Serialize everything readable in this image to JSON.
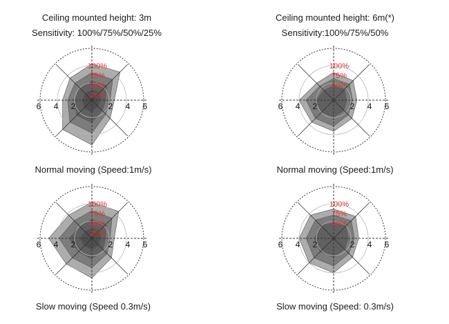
{
  "columns": [
    {
      "title_line1": "Ceiling mounted height: 3m",
      "title_line2": "Sensitivity: 100%/75%/50%/25%"
    },
    {
      "title_line1": "Ceiling mounted height: 6m(*)",
      "title_line2": "Sensitivity:100%/75%/50%"
    }
  ],
  "rows": [
    {
      "caption_col1": "Normal moving (Speed:1m/s)",
      "caption_col2": "Normal moving (Speed:1m/s)"
    },
    {
      "caption_col1": "Slow moving (Speed 0.3m/s)",
      "caption_col2": "Slow moving (Speed: 0.3m/s)"
    }
  ],
  "axis": {
    "left_ticks": [
      "6",
      "4",
      "2"
    ],
    "right_ticks": [
      "2",
      "4",
      "6"
    ],
    "max": 6
  },
  "colors": {
    "sensitivity_label": "#e03030",
    "axis": "#333333",
    "grid": "#444444",
    "zone_fill": "#3a3a3a"
  },
  "diagrams": [
    {
      "name": "3m-normal",
      "levels": [
        "100%",
        "75%",
        "50%",
        "25%"
      ],
      "zones": [
        [
          4.2,
          4.6,
          2.6,
          3.0,
          5.2,
          4.8,
          3.4,
          3.6
        ],
        [
          3.2,
          3.4,
          2.1,
          2.3,
          3.8,
          3.6,
          2.8,
          2.8
        ],
        [
          2.2,
          2.4,
          1.6,
          1.7,
          2.6,
          2.5,
          2.0,
          2.0
        ],
        [
          1.2,
          1.3,
          1.0,
          1.0,
          1.4,
          1.3,
          1.1,
          1.1
        ]
      ]
    },
    {
      "name": "6m-normal",
      "levels": [
        "100%",
        "75%",
        "50%"
      ],
      "zones": [
        [
          3.2,
          3.2,
          2.7,
          3.0,
          3.6,
          3.6,
          4.0,
          2.8
        ],
        [
          2.5,
          2.6,
          2.2,
          2.4,
          3.0,
          3.0,
          3.2,
          2.3
        ],
        [
          1.7,
          1.8,
          1.5,
          1.7,
          2.0,
          2.0,
          2.1,
          1.6
        ]
      ]
    },
    {
      "name": "3m-slow",
      "levels": [
        "100%",
        "75%",
        "50%",
        "25%"
      ],
      "zones": [
        [
          4.2,
          4.4,
          2.6,
          3.2,
          4.6,
          4.2,
          5.0,
          3.8
        ],
        [
          3.2,
          3.3,
          2.1,
          2.5,
          3.4,
          3.2,
          3.8,
          2.9
        ],
        [
          2.2,
          2.3,
          1.6,
          1.8,
          2.4,
          2.2,
          2.6,
          2.0
        ],
        [
          1.2,
          1.3,
          1.0,
          1.1,
          1.3,
          1.2,
          1.4,
          1.1
        ]
      ]
    },
    {
      "name": "6m-slow",
      "levels": [
        "100%",
        "75%",
        "50%"
      ],
      "zones": [
        [
          3.4,
          3.6,
          2.9,
          3.1,
          4.0,
          4.0,
          4.0,
          3.8
        ],
        [
          2.7,
          2.9,
          2.4,
          2.5,
          3.2,
          3.2,
          3.2,
          3.0
        ],
        [
          1.8,
          2.0,
          1.7,
          1.8,
          2.2,
          2.2,
          2.2,
          2.1
        ]
      ]
    }
  ]
}
